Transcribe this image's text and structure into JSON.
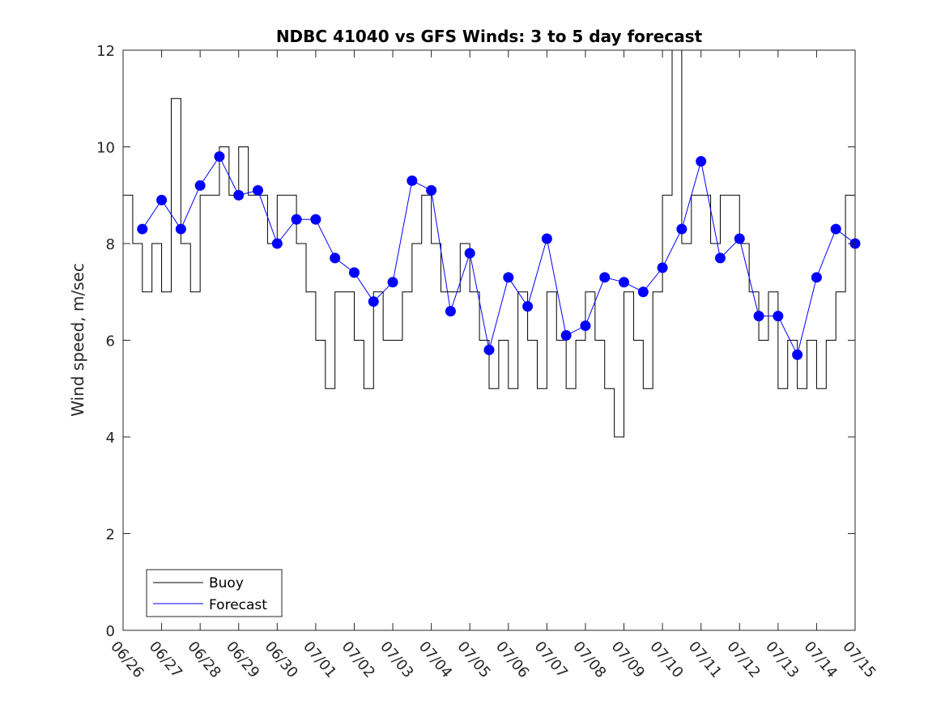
{
  "chart_data": {
    "type": "line",
    "title": "NDBC 41040 vs GFS Winds: 3 to 5 day forecast",
    "xlabel": "",
    "ylabel": "Wind speed, m/sec",
    "xlim": [
      "06/26",
      "07/15"
    ],
    "ylim": [
      0,
      12
    ],
    "x_ticks": [
      "06/26",
      "06/27",
      "06/28",
      "06/29",
      "06/30",
      "07/01",
      "07/02",
      "07/03",
      "07/04",
      "07/05",
      "07/06",
      "07/07",
      "07/08",
      "07/09",
      "07/10",
      "07/11",
      "07/12",
      "07/13",
      "07/14",
      "07/15"
    ],
    "y_ticks": [
      0,
      2,
      4,
      6,
      8,
      10,
      12
    ],
    "grid": false,
    "legend": {
      "placement": "bottom-left",
      "entries": [
        "Buoy",
        "Forecast"
      ]
    },
    "colors": {
      "buoy": "#000000",
      "forecast": "#0000ff",
      "markers": "#0000ff"
    },
    "series": [
      {
        "name": "Buoy",
        "x": [
          "06/26 00:00",
          "06/26 06:00",
          "06/26 12:00",
          "06/26 18:00",
          "06/27 00:00",
          "06/27 06:00",
          "06/27 12:00",
          "06/27 18:00",
          "06/28 00:00",
          "06/28 06:00",
          "06/28 12:00",
          "06/28 18:00",
          "06/29 00:00",
          "06/29 06:00",
          "06/29 12:00",
          "06/29 18:00",
          "06/30 00:00",
          "06/30 06:00",
          "06/30 12:00",
          "06/30 18:00",
          "07/01 00:00",
          "07/01 06:00",
          "07/01 12:00",
          "07/01 18:00",
          "07/02 00:00",
          "07/02 06:00",
          "07/02 12:00",
          "07/02 18:00",
          "07/03 00:00",
          "07/03 06:00",
          "07/03 12:00",
          "07/03 18:00",
          "07/04 00:00",
          "07/04 06:00",
          "07/04 12:00",
          "07/04 18:00",
          "07/05 00:00",
          "07/05 06:00",
          "07/05 12:00",
          "07/05 18:00",
          "07/06 00:00",
          "07/06 06:00",
          "07/06 12:00",
          "07/06 18:00",
          "07/07 00:00",
          "07/07 06:00",
          "07/07 12:00",
          "07/07 18:00",
          "07/08 00:00",
          "07/08 06:00",
          "07/08 12:00",
          "07/08 18:00",
          "07/09 00:00",
          "07/09 06:00",
          "07/09 12:00",
          "07/09 18:00",
          "07/10 00:00",
          "07/10 06:00",
          "07/10 12:00",
          "07/10 18:00",
          "07/11 00:00",
          "07/11 06:00",
          "07/11 12:00",
          "07/11 18:00",
          "07/12 00:00",
          "07/12 06:00",
          "07/12 12:00",
          "07/12 18:00",
          "07/13 00:00",
          "07/13 06:00",
          "07/13 12:00",
          "07/13 18:00",
          "07/14 00:00",
          "07/14 06:00",
          "07/14 12:00",
          "07/14 18:00",
          "07/15 00:00"
        ],
        "y": [
          9,
          8,
          7,
          8,
          7,
          11,
          8,
          7,
          9,
          9,
          10,
          9,
          10,
          9,
          9,
          8,
          9,
          9,
          8,
          7,
          6,
          5,
          7,
          7,
          6,
          5,
          7,
          6,
          6,
          7,
          8,
          9,
          8,
          7,
          7,
          8,
          7,
          6,
          5,
          6,
          5,
          7,
          6,
          5,
          7,
          6,
          5,
          6,
          7,
          6,
          5,
          4,
          7,
          6,
          5,
          7,
          9,
          12,
          8,
          9,
          9,
          8,
          9,
          9,
          8,
          7,
          6,
          7,
          5,
          6,
          5,
          6,
          5,
          6,
          7,
          9,
          9
        ]
      },
      {
        "name": "Forecast",
        "x": [
          "06/26 12:00",
          "06/27 00:00",
          "06/27 12:00",
          "06/28 00:00",
          "06/28 12:00",
          "06/29 00:00",
          "06/29 12:00",
          "06/30 00:00",
          "06/30 12:00",
          "07/01 00:00",
          "07/01 12:00",
          "07/02 00:00",
          "07/02 12:00",
          "07/03 00:00",
          "07/03 12:00",
          "07/04 00:00",
          "07/04 12:00",
          "07/05 00:00",
          "07/05 12:00",
          "07/06 00:00",
          "07/06 12:00",
          "07/07 00:00",
          "07/07 12:00",
          "07/08 00:00",
          "07/08 12:00",
          "07/09 00:00",
          "07/09 12:00",
          "07/10 00:00",
          "07/10 12:00",
          "07/11 00:00",
          "07/11 12:00",
          "07/12 00:00",
          "07/12 12:00",
          "07/13 00:00",
          "07/13 12:00",
          "07/14 00:00",
          "07/14 12:00",
          "07/15 00:00"
        ],
        "y": [
          8.3,
          8.9,
          8.3,
          9.2,
          9.8,
          9.0,
          9.1,
          8.0,
          8.5,
          8.5,
          7.7,
          7.4,
          6.8,
          7.2,
          9.3,
          9.1,
          6.6,
          7.8,
          5.8,
          7.3,
          6.7,
          8.1,
          6.1,
          6.3,
          7.3,
          7.2,
          7.0,
          7.5,
          8.3,
          9.7,
          7.7,
          8.1,
          6.5,
          6.5,
          5.7,
          7.3,
          8.3,
          8.0
        ]
      }
    ]
  }
}
